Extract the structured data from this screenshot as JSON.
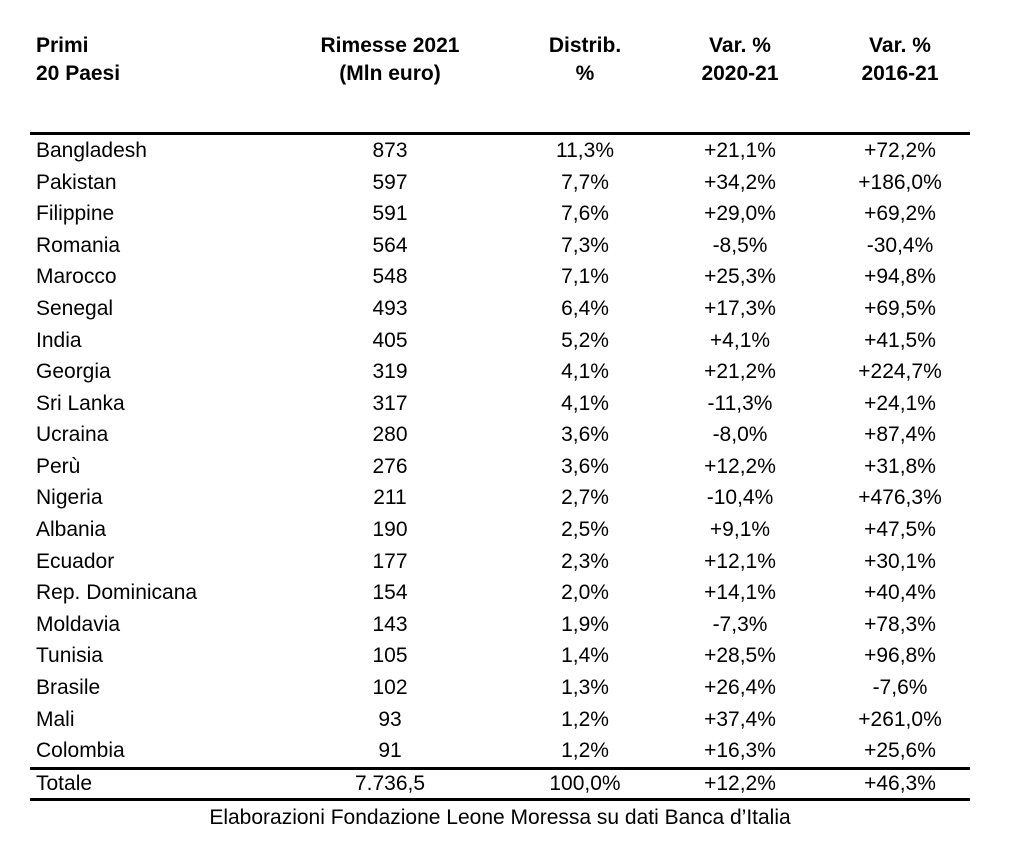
{
  "chart_data": {
    "type": "table",
    "header": {
      "col1": "Primi\n20 Paesi",
      "col2": "Rimesse 2021\n(Mln euro)",
      "col3": "Distrib.\n%",
      "col4": "Var. %\n2020-21",
      "col5": "Var. %\n2016-21"
    },
    "rows": [
      {
        "country": "Bangladesh",
        "rimesse": "873",
        "distrib": "11,3%",
        "var_2020_21": "+21,1%",
        "var_2016_21": "+72,2%"
      },
      {
        "country": "Pakistan",
        "rimesse": "597",
        "distrib": "7,7%",
        "var_2020_21": "+34,2%",
        "var_2016_21": "+186,0%"
      },
      {
        "country": "Filippine",
        "rimesse": "591",
        "distrib": "7,6%",
        "var_2020_21": "+29,0%",
        "var_2016_21": "+69,2%"
      },
      {
        "country": "Romania",
        "rimesse": "564",
        "distrib": "7,3%",
        "var_2020_21": "-8,5%",
        "var_2016_21": "-30,4%"
      },
      {
        "country": "Marocco",
        "rimesse": "548",
        "distrib": "7,1%",
        "var_2020_21": "+25,3%",
        "var_2016_21": "+94,8%"
      },
      {
        "country": "Senegal",
        "rimesse": "493",
        "distrib": "6,4%",
        "var_2020_21": "+17,3%",
        "var_2016_21": "+69,5%"
      },
      {
        "country": "India",
        "rimesse": "405",
        "distrib": "5,2%",
        "var_2020_21": "+4,1%",
        "var_2016_21": "+41,5%"
      },
      {
        "country": "Georgia",
        "rimesse": "319",
        "distrib": "4,1%",
        "var_2020_21": "+21,2%",
        "var_2016_21": "+224,7%"
      },
      {
        "country": "Sri Lanka",
        "rimesse": "317",
        "distrib": "4,1%",
        "var_2020_21": "-11,3%",
        "var_2016_21": "+24,1%"
      },
      {
        "country": "Ucraina",
        "rimesse": "280",
        "distrib": "3,6%",
        "var_2020_21": "-8,0%",
        "var_2016_21": "+87,4%"
      },
      {
        "country": "Perù",
        "rimesse": "276",
        "distrib": "3,6%",
        "var_2020_21": "+12,2%",
        "var_2016_21": "+31,8%"
      },
      {
        "country": "Nigeria",
        "rimesse": "211",
        "distrib": "2,7%",
        "var_2020_21": "-10,4%",
        "var_2016_21": "+476,3%"
      },
      {
        "country": "Albania",
        "rimesse": "190",
        "distrib": "2,5%",
        "var_2020_21": "+9,1%",
        "var_2016_21": "+47,5%"
      },
      {
        "country": "Ecuador",
        "rimesse": "177",
        "distrib": "2,3%",
        "var_2020_21": "+12,1%",
        "var_2016_21": "+30,1%"
      },
      {
        "country": "Rep. Dominicana",
        "rimesse": "154",
        "distrib": "2,0%",
        "var_2020_21": "+14,1%",
        "var_2016_21": "+40,4%"
      },
      {
        "country": "Moldavia",
        "rimesse": "143",
        "distrib": "1,9%",
        "var_2020_21": "-7,3%",
        "var_2016_21": "+78,3%"
      },
      {
        "country": "Tunisia",
        "rimesse": "105",
        "distrib": "1,4%",
        "var_2020_21": "+28,5%",
        "var_2016_21": "+96,8%"
      },
      {
        "country": "Brasile",
        "rimesse": "102",
        "distrib": "1,3%",
        "var_2020_21": "+26,4%",
        "var_2016_21": "-7,6%"
      },
      {
        "country": "Mali",
        "rimesse": "93",
        "distrib": "1,2%",
        "var_2020_21": "+37,4%",
        "var_2016_21": "+261,0%"
      },
      {
        "country": "Colombia",
        "rimesse": "91",
        "distrib": "1,2%",
        "var_2020_21": "+16,3%",
        "var_2016_21": "+25,6%"
      }
    ],
    "total": {
      "label": "Totale",
      "rimesse": "7.736,5",
      "distrib": "100,0%",
      "var_2020_21": "+12,2%",
      "var_2016_21": "+46,3%"
    },
    "source": "Elaborazioni Fondazione Leone Moressa su dati Banca d’Italia",
    "text_color": "#000000",
    "background_color": "#ffffff"
  }
}
